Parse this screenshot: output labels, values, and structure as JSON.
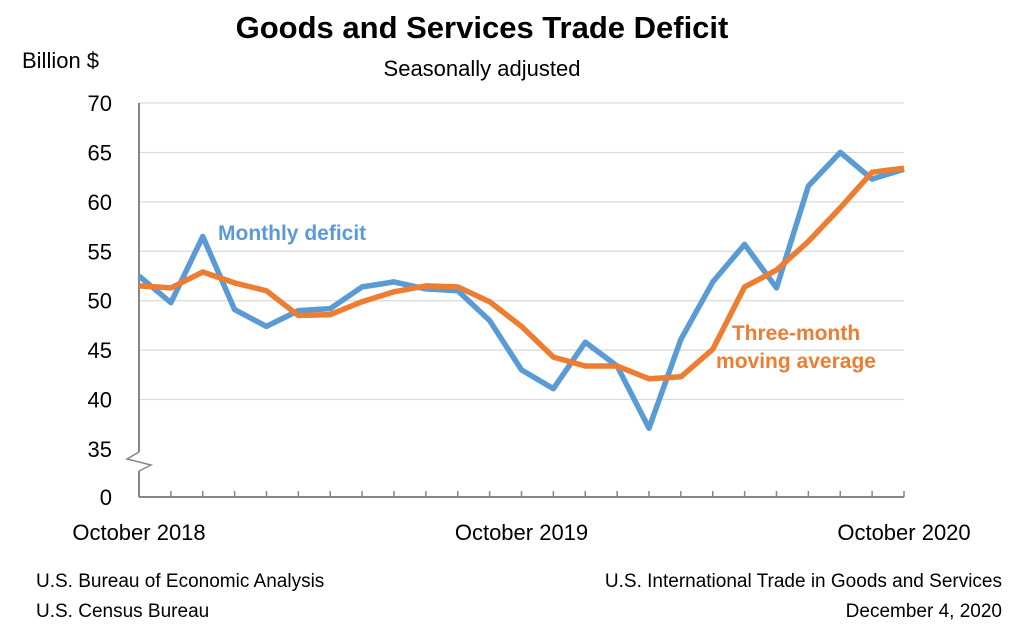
{
  "chart_data": {
    "type": "line",
    "title": "Goods and Services Trade Deficit",
    "subtitle": "Seasonally adjusted",
    "ylabel": "Billion $",
    "xlabel": "",
    "ylim": [
      35,
      70
    ],
    "y_break": true,
    "y_ticks": [
      "0",
      "35",
      "40",
      "45",
      "50",
      "55",
      "60",
      "65",
      "70"
    ],
    "x_tick_labels": [
      "October 2018",
      "October 2019",
      "October 2020"
    ],
    "grid": "horizontal",
    "series": [
      {
        "name": "Monthly deficit",
        "color": "#5B9BD5",
        "values": [
          52.5,
          49.8,
          56.5,
          49.1,
          47.4,
          49.0,
          49.2,
          51.4,
          51.9,
          51.2,
          51.0,
          48.0,
          43.0,
          41.1,
          45.8,
          43.4,
          37.1,
          46.1,
          51.9,
          55.7,
          51.3,
          61.6,
          65.0,
          62.3,
          63.3
        ]
      },
      {
        "name": "Three-month moving average",
        "label_lines": [
          "Three-month",
          "moving average"
        ],
        "color": "#ED7D31",
        "values": [
          51.5,
          51.3,
          52.9,
          51.8,
          51.0,
          48.5,
          48.6,
          49.9,
          50.9,
          51.5,
          51.4,
          49.9,
          47.4,
          44.3,
          43.4,
          43.4,
          42.1,
          42.3,
          45.1,
          51.4,
          53.1,
          56.0,
          59.4,
          63.0,
          63.4
        ]
      }
    ]
  },
  "footer": {
    "left1": "U.S. Bureau of Economic Analysis",
    "left2": "U.S. Census Bureau",
    "right1": "U.S. International Trade in Goods and Services",
    "right2": "December 4, 2020"
  }
}
